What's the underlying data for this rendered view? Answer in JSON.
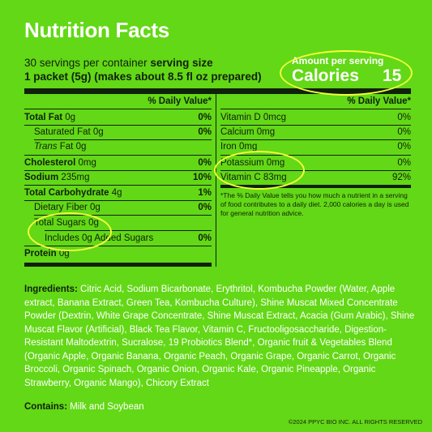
{
  "title": "Nutrition Facts",
  "serving": {
    "servings_prefix": "30 servings per container ",
    "size_label": "serving size",
    "size_value": "1 packet (5g) (makes about 8.5 fl oz prepared)"
  },
  "calories": {
    "amount_label": "Amount per serving",
    "label": "Calories",
    "value": "15"
  },
  "daily_value_header": "% Daily Value*",
  "left_rows": [
    {
      "label": "Total Fat",
      "amount": "0g",
      "dv": "0%"
    },
    {
      "label": "Saturated Fat",
      "amount": "0g",
      "dv": "0%"
    },
    {
      "label_italic": "Trans",
      "label": " Fat",
      "amount": "0g",
      "dv": ""
    },
    {
      "label": "Cholesterol",
      "amount": "0mg",
      "dv": "0%"
    },
    {
      "label": "Sodium",
      "amount": "235mg",
      "dv": "10%"
    },
    {
      "label": "Total Carbohydrate",
      "amount": "4g",
      "dv": "1%"
    },
    {
      "label": "Dietary Fiber",
      "amount": "0g",
      "dv": "0%"
    },
    {
      "label": "Total Sugars",
      "amount": "0g",
      "dv": ""
    },
    {
      "label": "Includes 0g Added Sugars",
      "amount": "",
      "dv": "0%"
    },
    {
      "label": "Protein",
      "amount": "0g",
      "dv": ""
    }
  ],
  "right_rows": [
    {
      "label": "Vitamin D",
      "amount": "0mcg",
      "dv": "0%"
    },
    {
      "label": "Calcium",
      "amount": "0mg",
      "dv": "0%"
    },
    {
      "label": "Iron",
      "amount": "0mg",
      "dv": "0%"
    },
    {
      "label": "Potassium",
      "amount": "0mg",
      "dv": "0%"
    },
    {
      "label": "Vitamin C",
      "amount": "83mg",
      "dv": "92%"
    }
  ],
  "footnote": "*The % Daily Value tells you how much a nutrient in a serving of food contributes to a daily diet. 2,000 calories a day is used for general nutrition advice.",
  "ingredients": {
    "label": "Ingredients:",
    "text": " Citric Acid, Sodium Bicarbonate, Erythritol, Kombucha Powder (Water, Apple extract, Banana Extract, Green Tea, Kombucha Culture), Shine Muscat Mixed Concentrate Powder (Dextrin, White Grape Concentrate, Shine Muscat Extract, Acacia (Gum Arabic), Shine Muscat Flavor (Artificial), Black Tea Flavor, Vitamin C, Fructooligosaccharide, Digestion-Resistant Maltodextrin, Sucralose, 19 Probiotics Blend*, Organic fruit & Vegetables Blend (Organic Apple, Organic Banana, Organic Peach, Organic Grape, Organic Carrot, Organic Broccoli, Organic Spinach, Organic Onion, Organic Kale, Organic Pineapple, Organic Strawberry, Organic Mango), Chicory Extract"
  },
  "contains": {
    "label": "Contains:",
    "text": " Milk and Soybean"
  },
  "copyright": "©2024 PPYC BIO INC. ALL RIGHTS RESERVED",
  "colors": {
    "background": "#63d816",
    "highlight_circle": "#f2ff3c",
    "text_dark": "#10210a",
    "text_light": "#ffffff"
  }
}
